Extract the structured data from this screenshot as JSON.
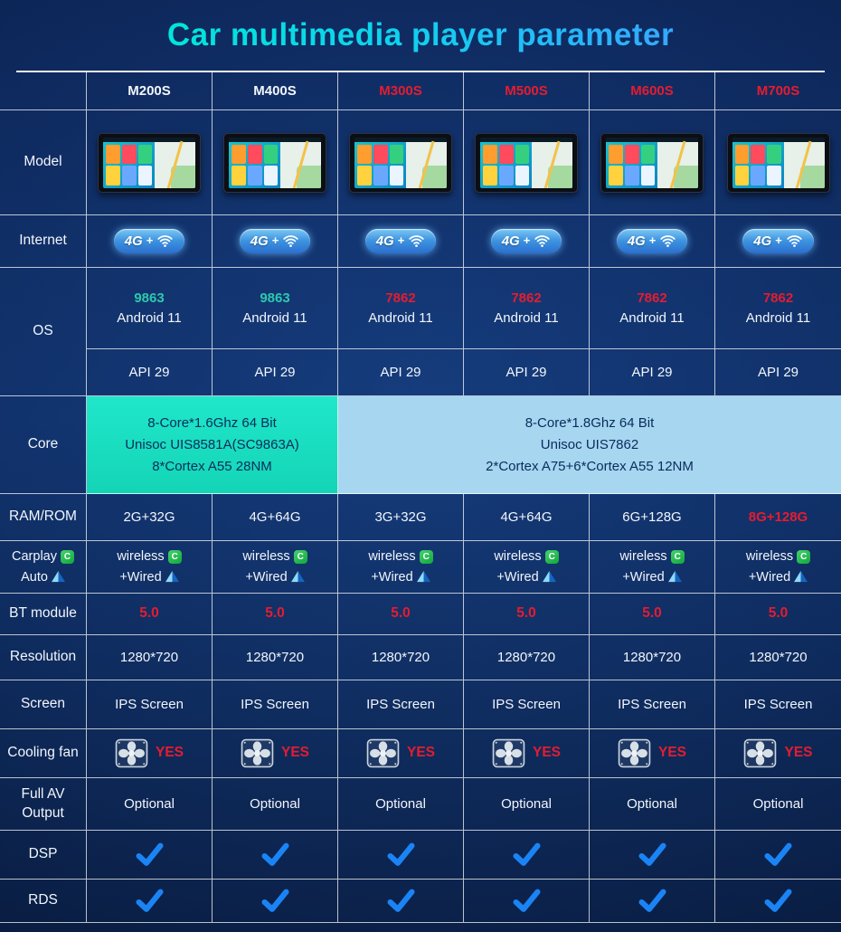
{
  "title": "Car multimedia player parameter",
  "columns": [
    "M200S",
    "M400S",
    "M300S",
    "M500S",
    "M600S",
    "M700S"
  ],
  "column_accent": [
    "white",
    "white",
    "red",
    "red",
    "red",
    "red"
  ],
  "labels": {
    "model": "Model",
    "internet": "Internet",
    "os": "OS",
    "core": "Core",
    "ram": "RAM/ROM",
    "carplay_line1": "Carplay",
    "carplay_line2": "Auto",
    "bt": "BT module",
    "resolution": "Resolution",
    "screen": "Screen",
    "cooling": "Cooling fan",
    "av_line1": "Full AV",
    "av_line2": "Output",
    "dsp": "DSP",
    "rds": "RDS"
  },
  "internet_badge": "4G",
  "internet_plus": "+",
  "os_chips": [
    "9863",
    "9863",
    "7862",
    "7862",
    "7862",
    "7862"
  ],
  "os_chip_accent": [
    "teal",
    "teal",
    "red",
    "red",
    "red",
    "red"
  ],
  "os_android": "Android 11",
  "os_api": "API 29",
  "core_left": [
    "8-Core*1.6Ghz 64 Bit",
    "Unisoc UIS8581A(SC9863A)",
    "8*Cortex A55 28NM"
  ],
  "core_right": [
    "8-Core*1.8Ghz 64 Bit",
    "Unisoc UIS7862",
    "2*Cortex A75+6*Cortex A55 12NM"
  ],
  "ram_values": [
    "2G+32G",
    "4G+64G",
    "3G+32G",
    "4G+64G",
    "6G+128G",
    "8G+128G"
  ],
  "ram_accent": [
    "white",
    "white",
    "white",
    "white",
    "white",
    "red"
  ],
  "carplay_wireless": "wireless",
  "carplay_wired": "+Wired",
  "bt_value": "5.0",
  "resolution_value": "1280*720",
  "screen_value": "IPS Screen",
  "cooling_value": "YES",
  "av_value": "Optional",
  "icons": {
    "carplay_glyph": "C"
  },
  "colors": {
    "accent_red": "#e51c30",
    "teal": "#2cc9ae",
    "check_blue": "#1b84f5",
    "core_left_bg": "#14d4b6",
    "core_right_bg": "#a7d6f0",
    "title_cyan": "#00e0ee"
  },
  "chart_data": {
    "type": "table",
    "title": "Car multimedia player parameter",
    "columns": [
      "M200S",
      "M400S",
      "M300S",
      "M500S",
      "M600S",
      "M700S"
    ],
    "rows": [
      {
        "label": "Internet",
        "values": [
          "4G + WiFi",
          "4G + WiFi",
          "4G + WiFi",
          "4G + WiFi",
          "4G + WiFi",
          "4G + WiFi"
        ]
      },
      {
        "label": "OS chipset",
        "values": [
          "9863",
          "9863",
          "7862",
          "7862",
          "7862",
          "7862"
        ]
      },
      {
        "label": "OS",
        "values": [
          "Android 11",
          "Android 11",
          "Android 11",
          "Android 11",
          "Android 11",
          "Android 11"
        ]
      },
      {
        "label": "API",
        "values": [
          "API 29",
          "API 29",
          "API 29",
          "API 29",
          "API 29",
          "API 29"
        ]
      },
      {
        "label": "Core",
        "values": [
          "8-Core*1.6Ghz 64 Bit Unisoc UIS8581A(SC9863A) 8*Cortex A55 28NM",
          "8-Core*1.6Ghz 64 Bit Unisoc UIS8581A(SC9863A) 8*Cortex A55 28NM",
          "8-Core*1.8Ghz 64 Bit Unisoc UIS7862 2*Cortex A75+6*Cortex A55 12NM",
          "8-Core*1.8Ghz 64 Bit Unisoc UIS7862 2*Cortex A75+6*Cortex A55 12NM",
          "8-Core*1.8Ghz 64 Bit Unisoc UIS7862 2*Cortex A75+6*Cortex A55 12NM",
          "8-Core*1.8Ghz 64 Bit Unisoc UIS7862 2*Cortex A75+6*Cortex A55 12NM"
        ]
      },
      {
        "label": "RAM/ROM",
        "values": [
          "2G+32G",
          "4G+64G",
          "3G+32G",
          "4G+64G",
          "6G+128G",
          "8G+128G"
        ]
      },
      {
        "label": "Carplay Auto",
        "values": [
          "wireless +Wired",
          "wireless +Wired",
          "wireless +Wired",
          "wireless +Wired",
          "wireless +Wired",
          "wireless +Wired"
        ]
      },
      {
        "label": "BT module",
        "values": [
          "5.0",
          "5.0",
          "5.0",
          "5.0",
          "5.0",
          "5.0"
        ]
      },
      {
        "label": "Resolution",
        "values": [
          "1280*720",
          "1280*720",
          "1280*720",
          "1280*720",
          "1280*720",
          "1280*720"
        ]
      },
      {
        "label": "Screen",
        "values": [
          "IPS Screen",
          "IPS Screen",
          "IPS Screen",
          "IPS Screen",
          "IPS Screen",
          "IPS Screen"
        ]
      },
      {
        "label": "Cooling fan",
        "values": [
          "YES",
          "YES",
          "YES",
          "YES",
          "YES",
          "YES"
        ]
      },
      {
        "label": "Full AV Output",
        "values": [
          "Optional",
          "Optional",
          "Optional",
          "Optional",
          "Optional",
          "Optional"
        ]
      },
      {
        "label": "DSP",
        "values": [
          "yes",
          "yes",
          "yes",
          "yes",
          "yes",
          "yes"
        ]
      },
      {
        "label": "RDS",
        "values": [
          "yes",
          "yes",
          "yes",
          "yes",
          "yes",
          "yes"
        ]
      }
    ]
  }
}
